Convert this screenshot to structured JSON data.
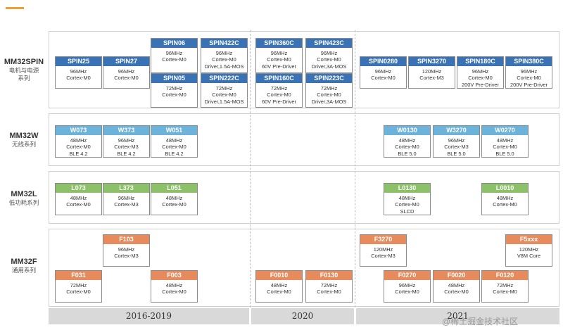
{
  "families": [
    {
      "id": "spin",
      "name": "MM32SPIN",
      "sub": [
        "电机与电源",
        "系列"
      ]
    },
    {
      "id": "w",
      "name": "MM32W",
      "sub": [
        "无线系列"
      ]
    },
    {
      "id": "l",
      "name": "MM32L",
      "sub": [
        "低功耗系列"
      ]
    },
    {
      "id": "f",
      "name": "MM32F",
      "sub": [
        "通用系列"
      ]
    }
  ],
  "timeline": [
    "2016-2019",
    "2020",
    "2021"
  ],
  "watermark": "@稀土掘金技术社区",
  "colors": {
    "spin": "#3a73b5",
    "wireless": "#6bb3da",
    "low_power": "#8cc169",
    "general": "#e78a5c",
    "accent": "#f0a030"
  },
  "chips": [
    {
      "name": "SPIN25",
      "lines": [
        "96MHz",
        "Cortex-M0"
      ]
    },
    {
      "name": "SPIN27",
      "lines": [
        "96MHz",
        "Cortex-M0"
      ]
    },
    {
      "name": "SPIN06",
      "lines": [
        "96MHz",
        "Cortex-M0"
      ]
    },
    {
      "name": "SPIN422C",
      "lines": [
        "96MHz",
        "Cortex-M0",
        "Driver,1.5A-MOS"
      ]
    },
    {
      "name": "SPIN05",
      "lines": [
        "72MHz",
        "Cortex-M0"
      ]
    },
    {
      "name": "SPIN222C",
      "lines": [
        "72MHz",
        "Cortex-M0",
        "Driver,1.5A-MOS"
      ]
    },
    {
      "name": "SPIN360C",
      "lines": [
        "96MHz",
        "Cortex-M0",
        "60V Pre-Driver"
      ]
    },
    {
      "name": "SPIN423C",
      "lines": [
        "96MHz",
        "Cortex-M0",
        "Driver,3A-MOS"
      ]
    },
    {
      "name": "SPIN160C",
      "lines": [
        "72MHz",
        "Cortex-M0",
        "60V Pre-Driver"
      ]
    },
    {
      "name": "SPIN223C",
      "lines": [
        "72MHz",
        "Cortex-M0",
        "Driver,3A-MOS"
      ]
    },
    {
      "name": "SPIN0280",
      "lines": [
        "96MHz",
        "Cortex-M0"
      ]
    },
    {
      "name": "SPIN3270",
      "lines": [
        "120MHz",
        "Cortex-M3"
      ]
    },
    {
      "name": "SPIN180C",
      "lines": [
        "96MHz",
        "Cortex-M0",
        "200V Pre-Driver"
      ]
    },
    {
      "name": "SPIN380C",
      "lines": [
        "96MHz",
        "Cortex-M0",
        "200V Pre-Driver"
      ]
    },
    {
      "name": "W073",
      "lines": [
        "48MHz",
        "Cortex-M0",
        "BLE 4.2"
      ]
    },
    {
      "name": "W373",
      "lines": [
        "96MHz",
        "Cortex-M3",
        "BLE 4.2"
      ]
    },
    {
      "name": "W051",
      "lines": [
        "48MHz",
        "Cortex-M0",
        "BLE 4.2"
      ]
    },
    {
      "name": "W0130",
      "lines": [
        "48MHz",
        "Cortex-M0",
        "BLE 5.0"
      ]
    },
    {
      "name": "W3270",
      "lines": [
        "96MHz",
        "Cortex-M3",
        "BLE 5.0"
      ]
    },
    {
      "name": "W0270",
      "lines": [
        "48MHz",
        "Cortex-M0",
        "BLE 5.0"
      ]
    },
    {
      "name": "L073",
      "lines": [
        "48MHz",
        "Cortex-M0"
      ]
    },
    {
      "name": "L373",
      "lines": [
        "96MHz",
        "Cortex-M3"
      ]
    },
    {
      "name": "L051",
      "lines": [
        "48MHz",
        "Cortex-M0"
      ]
    },
    {
      "name": "L0130",
      "lines": [
        "48MHz",
        "Cortex-M0",
        "SLCD"
      ]
    },
    {
      "name": "L0010",
      "lines": [
        "48MHz",
        "Cortex-M0"
      ]
    },
    {
      "name": "F103",
      "lines": [
        "96MHz",
        "Cortex-M3"
      ]
    },
    {
      "name": "F031",
      "lines": [
        "72MHz",
        "Cortex-M0"
      ]
    },
    {
      "name": "F003",
      "lines": [
        "48MHz",
        "Cortex-M0"
      ]
    },
    {
      "name": "F0010",
      "lines": [
        "48MHz",
        "Cortex-M0"
      ]
    },
    {
      "name": "F0130",
      "lines": [
        "72MHz",
        "Cortex-M0"
      ]
    },
    {
      "name": "F3270",
      "lines": [
        "120MHz",
        "Cortex-M3"
      ]
    },
    {
      "name": "F5xxx",
      "lines": [
        "120MHz",
        "V8M Core"
      ]
    },
    {
      "name": "F0270",
      "lines": [
        "96MHz",
        "Cortex-M0"
      ]
    },
    {
      "name": "F0020",
      "lines": [
        "48MHz",
        "Cortex-M0"
      ]
    },
    {
      "name": "F0120",
      "lines": [
        "72MHz",
        "Cortex-M0"
      ]
    }
  ]
}
